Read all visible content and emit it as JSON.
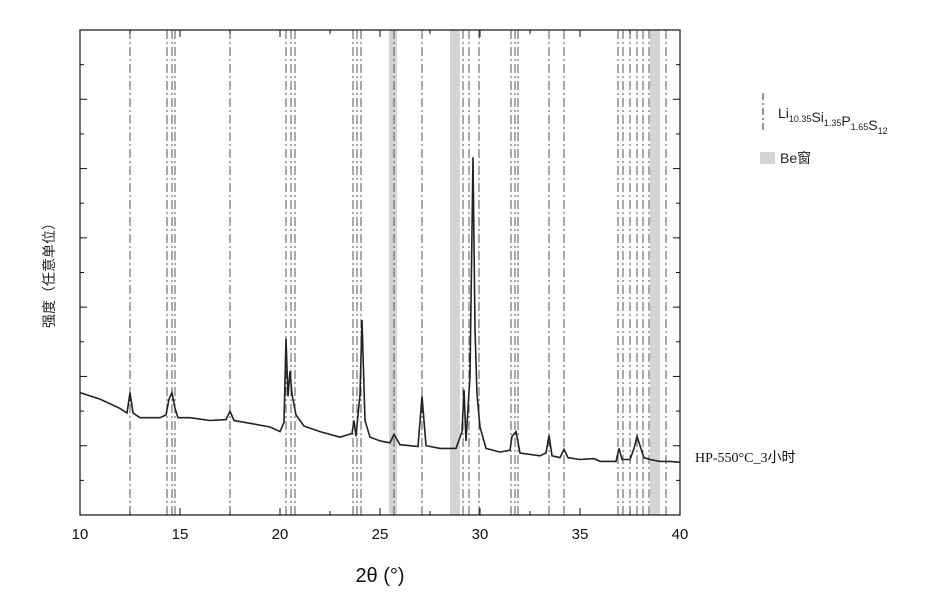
{
  "chart_data": {
    "type": "line",
    "xlabel": "2θ (°)",
    "ylabel": "强度（任意单位）",
    "xlim": [
      10,
      40
    ],
    "x_ticks": [
      "10",
      "15",
      "20",
      "25",
      "30",
      "35",
      "40"
    ],
    "y_tick_labels": "none",
    "trace_label": "HP-550°C_3小时",
    "legend": {
      "position": "right",
      "reference_lines": {
        "parts": [
          {
            "text": "Li",
            "sub": "10.35"
          },
          {
            "text": "Si",
            "sub": "1.35"
          },
          {
            "text": "P",
            "sub": "1.65"
          },
          {
            "text": "S",
            "sub": "12"
          }
        ]
      },
      "be_band": "Be窗"
    },
    "reference_peaks_2theta": [
      12.5,
      14.35,
      14.6,
      14.75,
      17.5,
      20.3,
      20.55,
      20.75,
      23.65,
      23.85,
      24.05,
      25.7,
      27.1,
      29.15,
      29.45,
      29.95,
      31.55,
      31.75,
      31.9,
      33.45,
      34.2,
      36.9,
      37.15,
      37.5,
      37.85,
      38.15,
      38.45,
      39.3
    ],
    "be_window_bands_2theta": [
      [
        25.45,
        25.85
      ],
      [
        28.5,
        29.0
      ],
      [
        38.5,
        39.0
      ]
    ],
    "series": [
      {
        "x": [
          10.0,
          11.0,
          12.0,
          12.35,
          12.5,
          12.65,
          13.0,
          14.0,
          14.3,
          14.45,
          14.6,
          14.75,
          14.9,
          15.5,
          16.5,
          17.3,
          17.5,
          17.7,
          18.5,
          19.5,
          20.0,
          20.2,
          20.3,
          20.4,
          20.5,
          20.6,
          20.8,
          21.2,
          22.0,
          23.0,
          23.6,
          23.7,
          23.8,
          24.0,
          24.1,
          24.25,
          24.5,
          25.0,
          25.5,
          25.7,
          26.0,
          26.9,
          27.1,
          27.3,
          28.0,
          28.8,
          29.1,
          29.2,
          29.3,
          29.5,
          29.65,
          29.75,
          29.85,
          30.0,
          30.3,
          31.0,
          31.5,
          31.6,
          31.8,
          32.0,
          33.0,
          33.3,
          33.45,
          33.6,
          34.0,
          34.2,
          34.4,
          35.0,
          35.7,
          36.0,
          36.8,
          36.95,
          37.1,
          37.5,
          37.7,
          37.85,
          38.0,
          38.2,
          38.5,
          39.0,
          39.5,
          40.0
        ],
        "y": [
          1.32,
          1.25,
          1.15,
          1.1,
          1.32,
          1.1,
          1.05,
          1.05,
          1.08,
          1.25,
          1.32,
          1.15,
          1.05,
          1.05,
          1.02,
          1.03,
          1.12,
          1.02,
          0.99,
          0.95,
          0.9,
          1.0,
          1.9,
          1.28,
          1.55,
          1.3,
          1.08,
          0.96,
          0.9,
          0.84,
          0.88,
          1.02,
          0.85,
          1.3,
          2.1,
          1.02,
          0.84,
          0.8,
          0.78,
          0.87,
          0.76,
          0.74,
          1.28,
          0.75,
          0.72,
          0.72,
          0.9,
          1.35,
          0.8,
          1.5,
          3.85,
          2.0,
          1.3,
          0.95,
          0.72,
          0.68,
          0.7,
          0.85,
          0.9,
          0.67,
          0.64,
          0.67,
          0.86,
          0.64,
          0.62,
          0.71,
          0.62,
          0.6,
          0.61,
          0.58,
          0.58,
          0.72,
          0.6,
          0.6,
          0.72,
          0.85,
          0.75,
          0.62,
          0.6,
          0.58,
          0.58,
          0.57
        ]
      }
    ]
  }
}
